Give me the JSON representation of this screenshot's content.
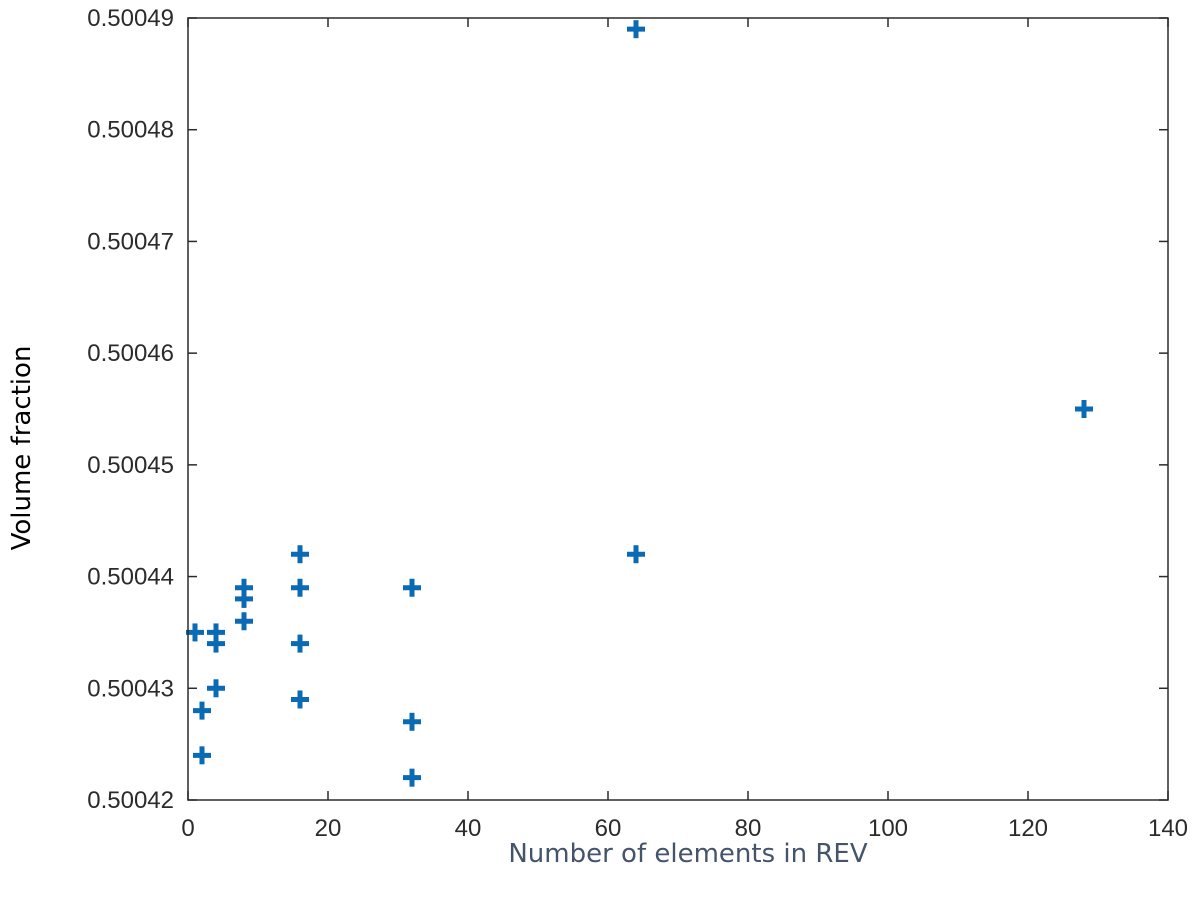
{
  "chart_data": {
    "type": "scatter",
    "title": "",
    "xlabel": "Number of elements in REV",
    "ylabel": "Volume fraction",
    "xlim": [
      0,
      140
    ],
    "ylim": [
      0.50042,
      0.50049
    ],
    "xticks": [
      "0",
      "20",
      "40",
      "60",
      "80",
      "100",
      "120",
      "140"
    ],
    "yticks": [
      "0.50042",
      "0.50043",
      "0.50044",
      "0.50045",
      "0.50046",
      "0.50047",
      "0.50048",
      "0.50049"
    ],
    "grid": false,
    "marker": "plus",
    "colors": {
      "marker": "#0a6ab4",
      "axis": "#2b2b2b",
      "xlabel": "#44546a",
      "ylabel": "#000000"
    },
    "series": [
      {
        "x": [
          1,
          2,
          2,
          4,
          4,
          4,
          8,
          8,
          8,
          16,
          16,
          16,
          16,
          32,
          32,
          32,
          64,
          64,
          128
        ],
        "y": [
          0.500435,
          0.500428,
          0.500424,
          0.500434,
          0.50043,
          0.500435,
          0.500439,
          0.500438,
          0.500436,
          0.500442,
          0.500439,
          0.500434,
          0.500429,
          0.500439,
          0.500427,
          0.500422,
          0.500489,
          0.500442,
          0.500455
        ]
      }
    ]
  }
}
